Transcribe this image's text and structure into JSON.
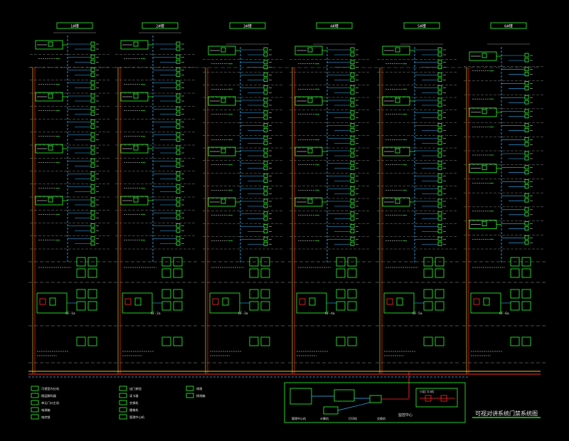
{
  "title": "可视对讲系统门禁系统图",
  "colors": {
    "background": "#000000",
    "device": "#2dff2d",
    "riser_cyan": "#33b8ff",
    "trunk_red": "#ff2a2a",
    "trunk_yellow": "#e8c020",
    "dashed_gray": "#9a9a9a",
    "text": "#e8e8e8"
  },
  "columns": [
    {
      "header": "1#楼",
      "floors": 16,
      "door_station": "GF-1a"
    },
    {
      "header": "2#楼",
      "floors": 16,
      "door_station": "GF-2a"
    },
    {
      "header": "3#楼",
      "floors": 16,
      "door_station": "GF-3a"
    },
    {
      "header": "4#楼",
      "floors": 16,
      "door_station": "GF-4a"
    },
    {
      "header": "5#楼",
      "floors": 16,
      "door_station": "GF-5a"
    },
    {
      "header": "6#楼",
      "floors": 14,
      "door_station": "GF-6a"
    }
  ],
  "legend": [
    {
      "icon": "indoor-unit-icon",
      "text": "可视室内分机"
    },
    {
      "icon": "decoder-icon",
      "text": "楼层解码器"
    },
    {
      "icon": "door-station-icon",
      "text": "单元门口主机"
    },
    {
      "icon": "power-icon",
      "text": "电源箱"
    },
    {
      "icon": "lock-icon",
      "text": "电控锁"
    },
    {
      "icon": "exit-button-icon",
      "text": "出门按钮"
    },
    {
      "icon": "card-reader-icon",
      "text": "读卡器"
    },
    {
      "icon": "switch-icon",
      "text": "交换机"
    },
    {
      "icon": "camera-icon",
      "text": "摄像机"
    },
    {
      "icon": "manager-icon",
      "text": "管理中心机"
    },
    {
      "icon": "cable-icon",
      "text": "线缆"
    },
    {
      "icon": "box-icon",
      "text": "接线箱"
    }
  ],
  "control_room": {
    "label": "监控中心",
    "subtitle": "门卫室",
    "items": [
      "管理中心机",
      "计算机",
      "打印机",
      "交换机"
    ]
  },
  "gate_box": {
    "label": "小区门口机"
  }
}
